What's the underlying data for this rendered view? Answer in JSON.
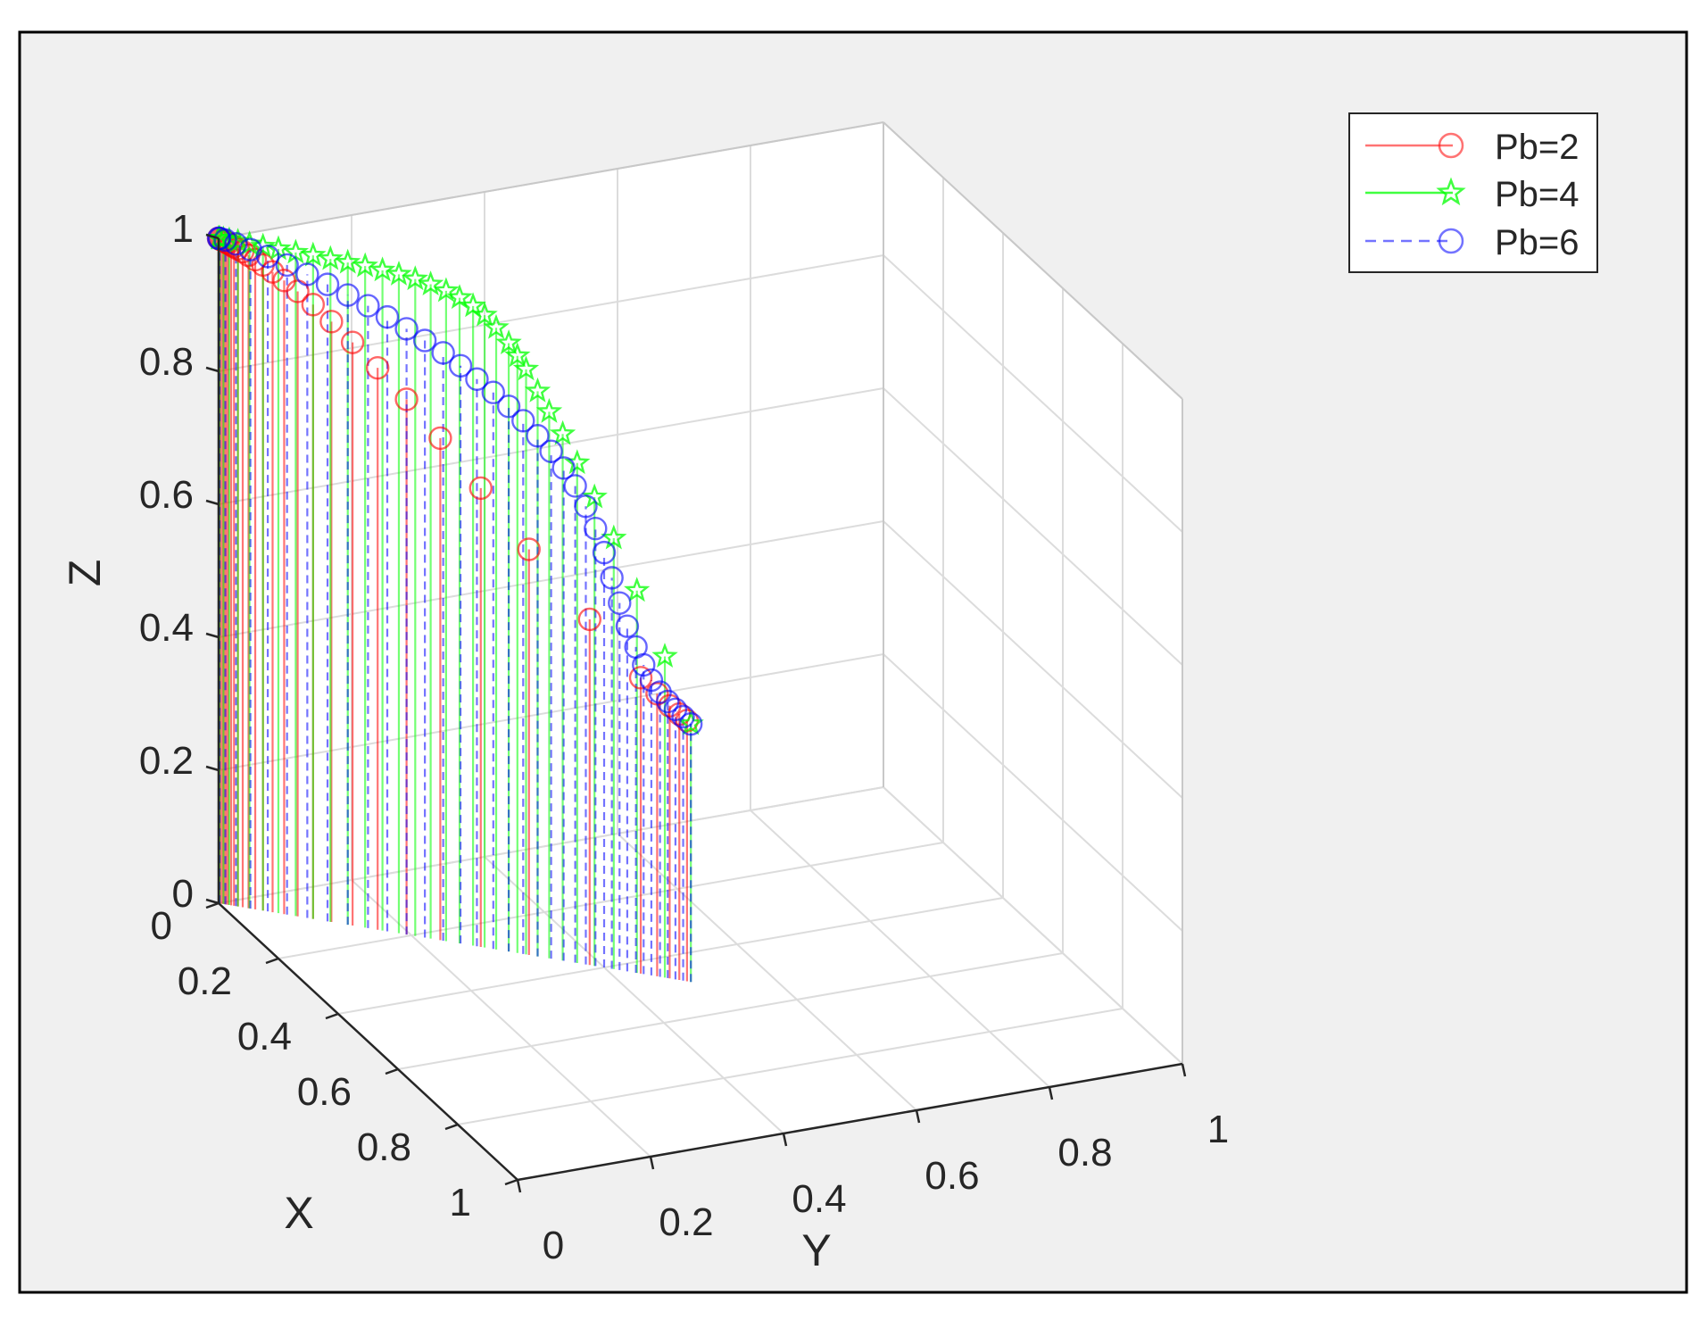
{
  "chart_data": {
    "type": "stem3",
    "xlabel": "X",
    "ylabel": "Y",
    "zlabel": "Z",
    "xlim": [
      0,
      1
    ],
    "ylim": [
      0,
      1
    ],
    "zlim": [
      0,
      1
    ],
    "x_ticks": [
      "0",
      "0.2",
      "0.4",
      "0.6",
      "0.8",
      "1"
    ],
    "y_ticks": [
      "0",
      "0.2",
      "0.4",
      "0.6",
      "0.8",
      "1"
    ],
    "z_ticks": [
      "0",
      "0.2",
      "0.4",
      "0.6",
      "0.8",
      "1"
    ],
    "grid": true,
    "legend_position": "top-right",
    "series": [
      {
        "name": "Pb=2",
        "color": "#ff0000",
        "line_style": "solid",
        "marker": "circle",
        "points": [
          [
            0.0,
            0.0,
            1.0
          ],
          [
            0.002,
            0.002,
            0.999
          ],
          [
            0.004,
            0.004,
            0.998
          ],
          [
            0.006,
            0.006,
            0.997
          ],
          [
            0.008,
            0.008,
            0.996
          ],
          [
            0.01,
            0.01,
            0.995
          ],
          [
            0.013,
            0.013,
            0.993
          ],
          [
            0.016,
            0.016,
            0.991
          ],
          [
            0.02,
            0.02,
            0.989
          ],
          [
            0.025,
            0.025,
            0.986
          ],
          [
            0.031,
            0.031,
            0.982
          ],
          [
            0.038,
            0.038,
            0.977
          ],
          [
            0.046,
            0.046,
            0.971
          ],
          [
            0.056,
            0.056,
            0.963
          ],
          [
            0.068,
            0.068,
            0.953
          ],
          [
            0.082,
            0.082,
            0.94
          ],
          [
            0.098,
            0.098,
            0.924
          ],
          [
            0.117,
            0.117,
            0.903
          ],
          [
            0.139,
            0.139,
            0.877
          ],
          [
            0.165,
            0.165,
            0.845
          ],
          [
            0.195,
            0.195,
            0.805
          ],
          [
            0.23,
            0.23,
            0.755
          ],
          [
            0.272,
            0.272,
            0.69
          ],
          [
            0.322,
            0.322,
            0.61
          ],
          [
            0.385,
            0.385,
            0.52
          ],
          [
            0.438,
            0.438,
            0.445
          ],
          [
            0.455,
            0.455,
            0.425
          ],
          [
            0.468,
            0.468,
            0.41
          ],
          [
            0.478,
            0.478,
            0.4
          ],
          [
            0.486,
            0.486,
            0.392
          ]
        ]
      },
      {
        "name": "Pb=4",
        "color": "#00ff00",
        "line_style": "solid",
        "marker": "pentagram",
        "points": [
          [
            0.49,
            0.49,
            0.388
          ],
          [
            0.463,
            0.463,
            0.483
          ],
          [
            0.434,
            0.434,
            0.575
          ],
          [
            0.41,
            0.41,
            0.648
          ],
          [
            0.39,
            0.39,
            0.705
          ],
          [
            0.372,
            0.372,
            0.752
          ],
          [
            0.357,
            0.357,
            0.792
          ],
          [
            0.343,
            0.343,
            0.822
          ],
          [
            0.331,
            0.331,
            0.85
          ],
          [
            0.319,
            0.319,
            0.88
          ],
          [
            0.31,
            0.31,
            0.898
          ],
          [
            0.301,
            0.301,
            0.915
          ],
          [
            0.288,
            0.288,
            0.935
          ],
          [
            0.276,
            0.276,
            0.951
          ],
          [
            0.264,
            0.264,
            0.962
          ],
          [
            0.25,
            0.25,
            0.971
          ],
          [
            0.236,
            0.236,
            0.978
          ],
          [
            0.22,
            0.22,
            0.984
          ],
          [
            0.204,
            0.204,
            0.988
          ],
          [
            0.187,
            0.187,
            0.991
          ],
          [
            0.17,
            0.17,
            0.993
          ],
          [
            0.152,
            0.152,
            0.995
          ],
          [
            0.134,
            0.134,
            0.996
          ],
          [
            0.116,
            0.116,
            0.997
          ],
          [
            0.098,
            0.098,
            0.998
          ],
          [
            0.08,
            0.08,
            0.998
          ],
          [
            0.062,
            0.062,
            0.999
          ],
          [
            0.046,
            0.046,
            0.999
          ],
          [
            0.032,
            0.032,
            0.999
          ],
          [
            0.02,
            0.02,
            1.0
          ],
          [
            0.011,
            0.011,
            1.0
          ],
          [
            0.005,
            0.005,
            1.0
          ],
          [
            0.001,
            0.001,
            1.0
          ],
          [
            0.0,
            0.0,
            1.0
          ]
        ]
      },
      {
        "name": "Pb=6",
        "color": "#0000ff",
        "line_style": "dashed",
        "marker": "circle",
        "points": [
          [
            0.49,
            0.49,
            0.388
          ],
          [
            0.482,
            0.482,
            0.397
          ],
          [
            0.474,
            0.474,
            0.406
          ],
          [
            0.466,
            0.466,
            0.416
          ],
          [
            0.458,
            0.458,
            0.428
          ],
          [
            0.449,
            0.449,
            0.444
          ],
          [
            0.441,
            0.441,
            0.465
          ],
          [
            0.433,
            0.433,
            0.49
          ],
          [
            0.424,
            0.424,
            0.519
          ],
          [
            0.416,
            0.416,
            0.552
          ],
          [
            0.408,
            0.408,
            0.588
          ],
          [
            0.4,
            0.4,
            0.624
          ],
          [
            0.391,
            0.391,
            0.658
          ],
          [
            0.381,
            0.381,
            0.689
          ],
          [
            0.37,
            0.37,
            0.717
          ],
          [
            0.358,
            0.358,
            0.741
          ],
          [
            0.345,
            0.345,
            0.763
          ],
          [
            0.331,
            0.331,
            0.783
          ],
          [
            0.316,
            0.316,
            0.802
          ],
          [
            0.301,
            0.301,
            0.82
          ],
          [
            0.285,
            0.285,
            0.837
          ],
          [
            0.268,
            0.268,
            0.853
          ],
          [
            0.251,
            0.251,
            0.869
          ],
          [
            0.233,
            0.233,
            0.884
          ],
          [
            0.214,
            0.214,
            0.898
          ],
          [
            0.195,
            0.195,
            0.911
          ],
          [
            0.175,
            0.175,
            0.924
          ],
          [
            0.155,
            0.155,
            0.936
          ],
          [
            0.134,
            0.134,
            0.947
          ],
          [
            0.113,
            0.113,
            0.958
          ],
          [
            0.092,
            0.092,
            0.968
          ],
          [
            0.071,
            0.071,
            0.977
          ],
          [
            0.051,
            0.051,
            0.985
          ],
          [
            0.033,
            0.033,
            0.991
          ],
          [
            0.018,
            0.018,
            0.996
          ],
          [
            0.007,
            0.007,
            0.999
          ],
          [
            0.001,
            0.001,
            1.0
          ],
          [
            0.0,
            0.0,
            1.0
          ]
        ]
      }
    ]
  }
}
